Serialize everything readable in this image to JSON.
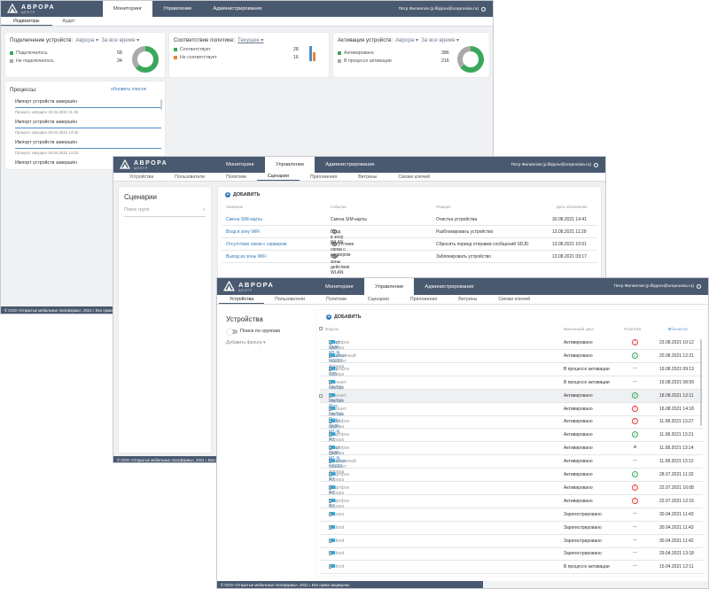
{
  "brand": {
    "name": "АВРОРА",
    "sub": "ЦЕНТР"
  },
  "user": "Петр Филиппов (p.filippov@omprussia.ru)",
  "w1": {
    "tabs": [
      "Мониторинг",
      "Управление",
      "Администрирование"
    ],
    "subtabs": [
      "Индикаторы",
      "Аудит"
    ],
    "cards": {
      "c1": {
        "title": "Подключение устройств:",
        "sel1": "Аврора ▾",
        "sel2": "За все время ▾",
        "l1": "Подключилось",
        "v1": "58",
        "l2": "Не подключилось",
        "v2": "34"
      },
      "c2": {
        "title": "Соответствие политике:",
        "sel1": "Текущее ▾",
        "l1": "Соответствует",
        "v1": "28",
        "l2": "Не соответствует",
        "v2": "16"
      },
      "c3": {
        "title": "Активация устройств:",
        "sel1": "Аврора ▾",
        "sel2": "За все время ▾",
        "l1": "Активировано",
        "v1": "386",
        "l2": "В процессе активации",
        "v2": "216"
      }
    },
    "proc": {
      "title": "Процессы:",
      "refresh": "обновить список",
      "items": [
        {
          "t": "Импорт устройств завершён",
          "d": "Процесс запущен 30.04.2021 11:45"
        },
        {
          "t": "Импорт устройств завершён",
          "d": "Процесс запущен 29.04.2021 13:30"
        },
        {
          "t": "Импорт устройств завершён",
          "d": "Процесс запущен 29.04.2021 13:20"
        },
        {
          "t": "Импорт устройств завершён",
          "d": ""
        }
      ]
    },
    "footer": "© ООО «Открытые мобильные платформы», 2021 г. Все права з"
  },
  "w2": {
    "tabs": [
      "Мониторинг",
      "Управление",
      "Администрирование"
    ],
    "subtabs": [
      "Устройства",
      "Пользователи",
      "Политики",
      "Сценарии",
      "Приложения",
      "Витрины",
      "Связки ключей"
    ],
    "side_title": "Сценарии",
    "search": "Поиск групп",
    "add": "ДОБАВИТЬ",
    "cols": [
      "Название",
      "Событие",
      "Реакция",
      "Дата обновления"
    ],
    "rows": [
      {
        "name": "Смена SIM-карты",
        "event": "Смена SIM-карты",
        "reaction": "Очистка устройства",
        "date": "30.08.2021 14:41"
      },
      {
        "name": "Вход в зону WiFi",
        "event": "Вход в зону WLAN",
        "reaction": "Разблокировать устройство",
        "date": "13.08.2021 11:29"
      },
      {
        "name": "Отсутствие связи с сервером",
        "event": "Отсутствие связи с сервером",
        "reaction": "Сбросить период отправки сообщений SDJD",
        "date": "13.08.2021 10:01"
      },
      {
        "name": "Выход из зоны WiFi",
        "event": "Вне зоны действия WLAN",
        "reaction": "Заблокировать устройство",
        "date": "13.08.2021 09:17"
      }
    ],
    "footer": "© ООО «Открытые мобильные платформы», 2021 г. Все права з"
  },
  "w3": {
    "tabs": [
      "Мониторинг",
      "Управление",
      "Администрирование"
    ],
    "subtabs": [
      "Устройства",
      "Пользователи",
      "Политики",
      "Сценарии",
      "Приложения",
      "Витрины",
      "Связки ключей"
    ],
    "side_title": "Устройства",
    "toggle_label": "Поиск по группам",
    "filter": "Добавить фильтр ▾",
    "add": "ДОБАВИТЬ",
    "cols": [
      "Модель",
      "Жизненный цикл",
      "Политика",
      "Обновлено"
    ],
    "rows": [
      {
        "model": "Qtech QMP-M1-N",
        "desc": "смартфон Аврора",
        "state": "Активировано",
        "pol": "bad",
        "date": "23.08.2021 10:12"
      },
      {
        "model": "Aquarius NS220",
        "desc": "защищенный планшет Аврора",
        "state": "Активировано",
        "pol": "ok",
        "date": "20.08.2021 12:21"
      },
      {
        "model": "MIG C55",
        "desc": "смартфон Аврора",
        "state": "В процессе активации",
        "pol": "none",
        "date": "19.08.2021 09:13"
      },
      {
        "model": "F+ LifeTab Plus",
        "desc": "планшет Аврора",
        "state": "В процессе активации",
        "pol": "none",
        "date": "19.08.2021 08:59"
      },
      {
        "model": "F+ LifeTab Plus",
        "desc": "планшет Аврора",
        "state": "Активировано",
        "pol": "ok",
        "date": "18.08.2021 12:11"
      },
      {
        "model": "F+ LifeTab Plus",
        "desc": "планшет Аврора",
        "state": "Активировано",
        "pol": "bad",
        "date": "16.08.2021 14:18"
      },
      {
        "model": "Qtech QMP-M1-N",
        "desc": "смартфон Аврора",
        "state": "Активировано",
        "pol": "bad",
        "date": "11.08.2021 13:27"
      },
      {
        "model": "Inoi R7",
        "desc": "смартфон Аврора",
        "state": "Активировано",
        "pol": "ok",
        "date": "11.08.2021 13:21"
      },
      {
        "model": "Qtech QMP-M1-N",
        "desc": "смартфон Аврора",
        "state": "Активировано",
        "pol": "off",
        "date": "11.08.2021 13:14"
      },
      {
        "model": "Aquarius NS220",
        "desc": "защищенный планшет Аврора",
        "state": "Активировано",
        "pol": "none",
        "date": "11.08.2021 13:12"
      },
      {
        "model": "Inoi R7",
        "desc": "смартфон Аврора",
        "state": "Активировано",
        "pol": "ok",
        "date": "28.07.2021 11:32"
      },
      {
        "model": "Inoi R7",
        "desc": "смартфон Аврора",
        "state": "Активировано",
        "pol": "bad",
        "date": "22.07.2021 16:08"
      },
      {
        "model": "Inoi R7",
        "desc": "смартфон Аврора",
        "state": "Активировано",
        "pol": "bad",
        "date": "22.07.2021 12:15"
      },
      {
        "model": "—",
        "desc": "Аврора",
        "state": "Зарегистрировано",
        "pol": "none",
        "date": "30.04.2021 11:43"
      },
      {
        "model": "—",
        "desc": "Android",
        "state": "Зарегистрировано",
        "pol": "none",
        "date": "30.04.2021 11:43"
      },
      {
        "model": "—",
        "desc": "Android",
        "state": "Зарегистрировано",
        "pol": "none",
        "date": "30.04.2021 11:42"
      },
      {
        "model": "—",
        "desc": "Android",
        "state": "Зарегистрировано",
        "pol": "none",
        "date": "29.04.2021 13:18"
      },
      {
        "model": "—",
        "desc": "Android",
        "state": "В процессе активации",
        "pol": "none",
        "date": "15.04.2021 12:11"
      }
    ],
    "footer": "© ООО «Открытые мобильные платформы», 2021 г. Все права защищены."
  },
  "colors": {
    "header": "#49596f",
    "ok": "#3aa85b",
    "bad": "#e33b3b",
    "link": "#3178b8"
  }
}
